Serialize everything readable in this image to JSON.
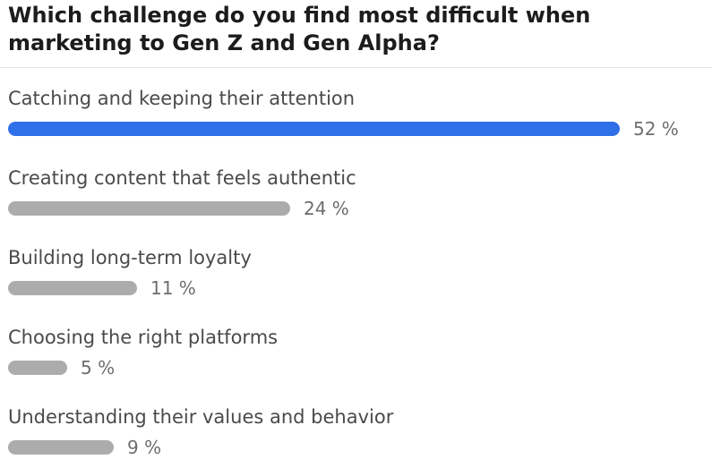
{
  "poll": {
    "question": "Which challenge do you find most difficult when marketing to Gen Z and Gen Alpha?",
    "colors": {
      "leading_bar": "#2f70e8",
      "other_bars": "#acacac",
      "question_text": "#1c1c1c",
      "option_text": "#4a4a4a",
      "percent_text": "#6d6d6d"
    },
    "options": [
      {
        "label": "Catching and keeping their attention",
        "percent": 52,
        "percent_text": "52 %",
        "leading": true
      },
      {
        "label": "Creating content that feels authentic",
        "percent": 24,
        "percent_text": "24 %",
        "leading": false
      },
      {
        "label": "Building long-term loyalty",
        "percent": 11,
        "percent_text": "11 %",
        "leading": false
      },
      {
        "label": "Choosing the right platforms",
        "percent": 5,
        "percent_text": "5 %",
        "leading": false
      },
      {
        "label": "Understanding their values and behavior",
        "percent": 9,
        "percent_text": "9 %",
        "leading": false
      }
    ]
  }
}
